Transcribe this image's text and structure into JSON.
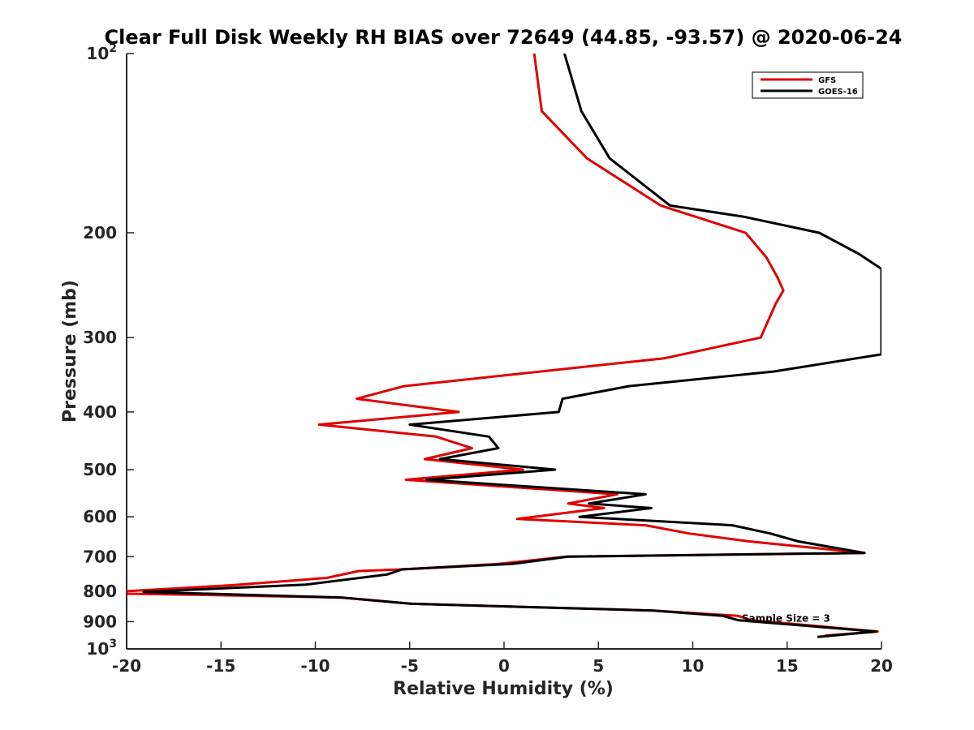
{
  "chart_data": {
    "type": "line",
    "title": "Clear Full Disk Weekly RH BIAS over 72649 (44.85, -93.57) @ 2020-06-24",
    "xlabel": "Relative Humidity (%)",
    "ylabel": "Pressure (mb)",
    "xlim": [
      -20,
      20
    ],
    "ylim": [
      1000,
      100
    ],
    "y_scale": "log",
    "y_reversed": true,
    "grid": false,
    "legend_position": "top-right",
    "x_ticks": [
      {
        "value": -20,
        "label": "-20"
      },
      {
        "value": -15,
        "label": "-15"
      },
      {
        "value": -10,
        "label": "-10"
      },
      {
        "value": -5,
        "label": "-5"
      },
      {
        "value": 0,
        "label": "0"
      },
      {
        "value": 5,
        "label": "5"
      },
      {
        "value": 10,
        "label": "10"
      },
      {
        "value": 15,
        "label": "15"
      },
      {
        "value": 20,
        "label": "20"
      }
    ],
    "y_ticks": [
      {
        "value": 100,
        "base": "10",
        "exp": "2"
      },
      {
        "value": 200,
        "label": "200"
      },
      {
        "value": 300,
        "label": "300"
      },
      {
        "value": 400,
        "label": "400"
      },
      {
        "value": 500,
        "label": "500"
      },
      {
        "value": 600,
        "label": "600"
      },
      {
        "value": 700,
        "label": "700"
      },
      {
        "value": 800,
        "label": "800"
      },
      {
        "value": 900,
        "label": "900"
      },
      {
        "value": 1000,
        "base": "10",
        "exp": "3"
      }
    ],
    "series": [
      {
        "name": "GFS",
        "color": "#e00000",
        "points": [
          [
            1.6,
            100
          ],
          [
            2.0,
            125
          ],
          [
            4.4,
            150
          ],
          [
            8.3,
            180
          ],
          [
            12.8,
            200
          ],
          [
            13.9,
            220
          ],
          [
            14.5,
            238
          ],
          [
            14.8,
            250
          ],
          [
            14.4,
            263
          ],
          [
            13.6,
            300
          ],
          [
            8.5,
            325
          ],
          [
            -5.3,
            362
          ],
          [
            -7.8,
            380
          ],
          [
            -2.4,
            400
          ],
          [
            -9.8,
            420
          ],
          [
            -3.6,
            440
          ],
          [
            -1.7,
            460
          ],
          [
            -4.2,
            480
          ],
          [
            1.0,
            500
          ],
          [
            -5.2,
            520
          ],
          [
            6.0,
            550
          ],
          [
            3.4,
            570
          ],
          [
            5.3,
            580
          ],
          [
            0.7,
            605
          ],
          [
            7.5,
            620
          ],
          [
            9.8,
            640
          ],
          [
            13.0,
            660
          ],
          [
            19.1,
            690
          ],
          [
            3.3,
            700
          ],
          [
            -0.3,
            720
          ],
          [
            -5.3,
            735
          ],
          [
            -7.7,
            740
          ],
          [
            -9.4,
            760
          ],
          [
            -14.5,
            782
          ],
          [
            -20.0,
            800
          ],
          [
            -20.0,
            808
          ],
          [
            -16.4,
            811
          ],
          [
            -8.6,
            820
          ],
          [
            -4.9,
            840
          ],
          [
            7.9,
            862
          ],
          [
            12.4,
            880
          ],
          [
            13.1,
            895
          ],
          [
            19.8,
            935
          ],
          [
            17.0,
            950
          ]
        ]
      },
      {
        "name": "GOES-16",
        "color": "#000000",
        "points": [
          [
            3.2,
            100
          ],
          [
            4.1,
            125
          ],
          [
            5.6,
            150
          ],
          [
            8.8,
            180
          ],
          [
            12.7,
            188
          ],
          [
            16.7,
            200
          ],
          [
            18.8,
            217
          ],
          [
            20.0,
            230
          ],
          [
            20.0,
            320
          ],
          [
            14.3,
            342
          ],
          [
            6.6,
            362
          ],
          [
            3.1,
            380
          ],
          [
            2.9,
            400
          ],
          [
            -5.0,
            420
          ],
          [
            -0.8,
            440
          ],
          [
            -0.3,
            460
          ],
          [
            -3.4,
            480
          ],
          [
            2.7,
            500
          ],
          [
            -4.1,
            520
          ],
          [
            7.5,
            550
          ],
          [
            4.5,
            570
          ],
          [
            7.8,
            580
          ],
          [
            4.0,
            600
          ],
          [
            12.1,
            620
          ],
          [
            14.1,
            640
          ],
          [
            15.6,
            660
          ],
          [
            19.1,
            690
          ],
          [
            3.4,
            700
          ],
          [
            0.4,
            720
          ],
          [
            -5.4,
            735
          ],
          [
            -6.2,
            750
          ],
          [
            -10.5,
            780
          ],
          [
            -19.1,
            802
          ],
          [
            -8.6,
            820
          ],
          [
            -4.9,
            840
          ],
          [
            7.9,
            862
          ],
          [
            11.6,
            880
          ],
          [
            12.4,
            895
          ],
          [
            19.7,
            935
          ],
          [
            16.6,
            955
          ]
        ]
      }
    ],
    "annotations": [
      {
        "text": "Sample Size = 3",
        "x": 12.6,
        "y": 900
      }
    ]
  }
}
